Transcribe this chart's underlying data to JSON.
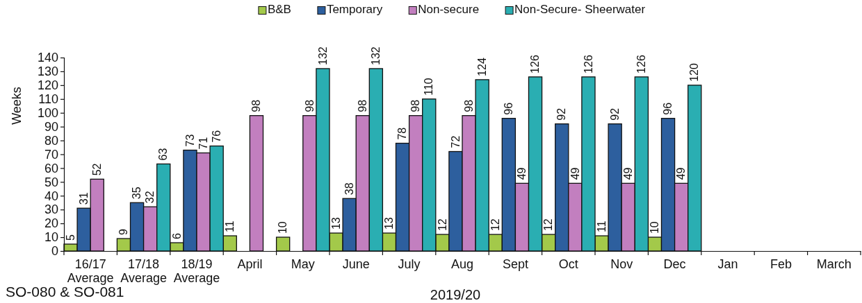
{
  "chart_data": {
    "type": "bar",
    "categories": [
      "16/17 Average",
      "17/18 Average",
      "18/19 Average",
      "April",
      "May",
      "June",
      "July",
      "Aug",
      "Sept",
      "Oct",
      "Nov",
      "Dec",
      "Jan",
      "Feb",
      "March"
    ],
    "series": [
      {
        "name": "B&B",
        "color": "#a3c94a",
        "values": [
          5,
          9,
          6,
          11,
          10,
          13,
          13,
          12,
          12,
          12,
          11,
          10,
          null,
          null,
          null
        ]
      },
      {
        "name": "Temporary",
        "color": "#2d5f9e",
        "values": [
          31,
          35,
          73,
          null,
          null,
          38,
          78,
          72,
          96,
          92,
          92,
          96,
          null,
          null,
          null
        ]
      },
      {
        "name": "Non-secure",
        "color": "#c27fbf",
        "values": [
          52,
          32,
          71,
          98,
          98,
          98,
          98,
          98,
          49,
          49,
          49,
          49,
          null,
          null,
          null
        ]
      },
      {
        "name": "Non-Secure- Sheerwater",
        "color": "#2aaeb2",
        "values": [
          null,
          63,
          76,
          null,
          132,
          132,
          110,
          124,
          126,
          126,
          126,
          120,
          null,
          null,
          null
        ]
      }
    ],
    "ylim": [
      0,
      140
    ],
    "yticks": [
      0,
      10,
      20,
      30,
      40,
      50,
      60,
      70,
      80,
      90,
      100,
      110,
      120,
      130,
      140
    ],
    "ylabel": "Weeks",
    "xlabel": "2019/20",
    "annotations": [
      "SO-080 & SO-081"
    ],
    "data_labels": true,
    "legend": "top"
  }
}
